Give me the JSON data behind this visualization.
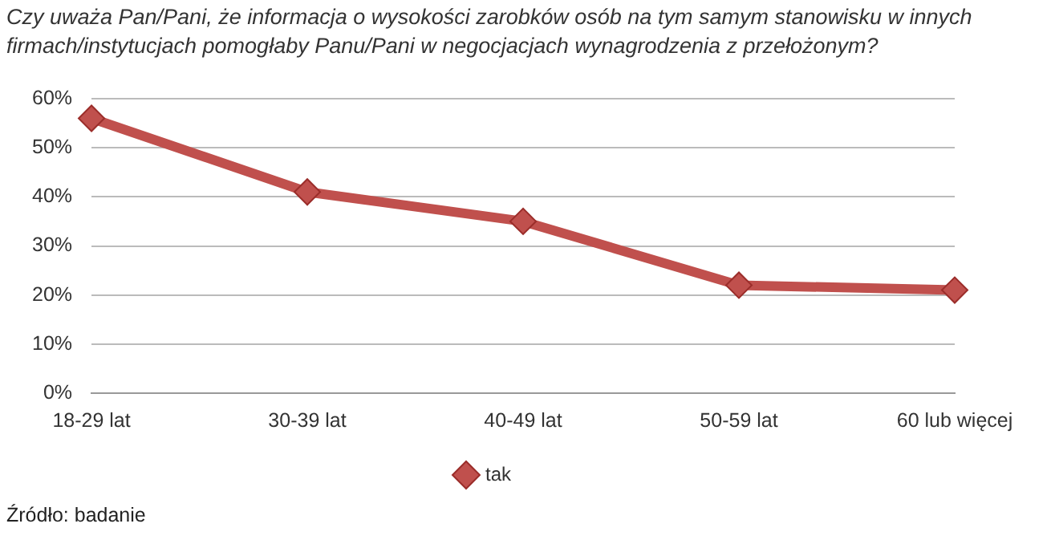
{
  "chart_data": {
    "type": "line",
    "title": "Czy uważa Pan/Pani, że informacja o wysokości zarobków osób na tym samym stanowisku w innych firmach/instytucjach pomogłaby Panu/Pani w negocjacjach wynagrodzenia z przełożonym?",
    "categories": [
      "18-29 lat",
      "30-39 lat",
      "40-49 lat",
      "50-59 lat",
      "60 lub więcej"
    ],
    "series": [
      {
        "name": "tak",
        "color": "#c0504d",
        "values": [
          56,
          41,
          35,
          22,
          21
        ]
      }
    ],
    "ylim": [
      0,
      60
    ],
    "yticks": [
      {
        "value": 0,
        "label": "0%"
      },
      {
        "value": 10,
        "label": "10%"
      },
      {
        "value": 20,
        "label": "20%"
      },
      {
        "value": 30,
        "label": "30%"
      },
      {
        "value": 40,
        "label": "40%"
      },
      {
        "value": 50,
        "label": "50%"
      },
      {
        "value": 60,
        "label": "60%"
      }
    ],
    "grid": "y",
    "legend": "bottom",
    "marker": "diamond",
    "line_style": "solid",
    "annotations": [
      "Źródło: badanie"
    ]
  }
}
